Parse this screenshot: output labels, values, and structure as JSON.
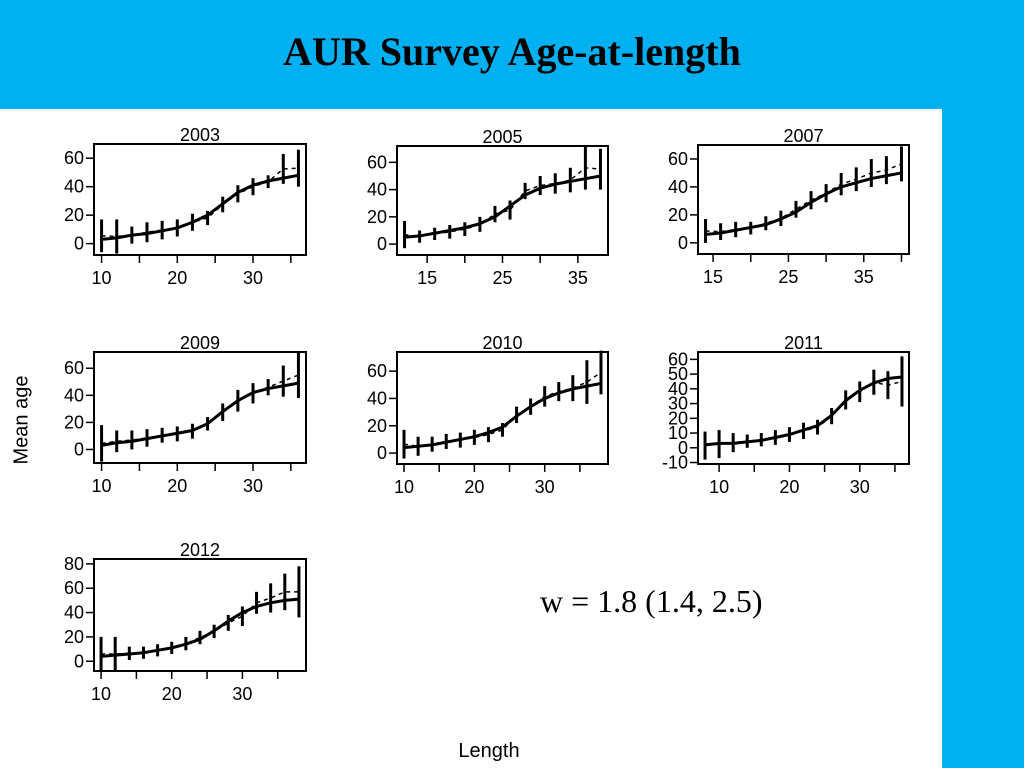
{
  "slide": {
    "title": "AUR Survey Age-at-length",
    "annotation": "w = 1.8 (1.4, 2.5)"
  },
  "colors": {
    "band": "#00b0f0",
    "ink": "#000000"
  },
  "chart_data": {
    "type": "line",
    "xlabel": "Length",
    "ylabel": "Mean age",
    "grid": false,
    "legend": "none",
    "panels": [
      {
        "title": "2003",
        "xlim": [
          9,
          37
        ],
        "ylim": [
          -8,
          70
        ],
        "xticks": [
          10,
          20,
          30
        ],
        "yticks": [
          0,
          20,
          40,
          60
        ],
        "fit": {
          "x": [
            10,
            12,
            14,
            16,
            18,
            20,
            22,
            24,
            26,
            28,
            30,
            32,
            34,
            36
          ],
          "y": [
            3,
            4,
            6,
            7,
            9,
            11,
            15,
            20,
            28,
            36,
            41,
            44,
            46,
            48
          ]
        },
        "observed": [
          {
            "x": 10,
            "low": -6,
            "high": 17
          },
          {
            "x": 12,
            "low": -7,
            "high": 17
          },
          {
            "x": 14,
            "low": 0,
            "high": 12
          },
          {
            "x": 16,
            "low": 1,
            "high": 15
          },
          {
            "x": 18,
            "low": 3,
            "high": 16
          },
          {
            "x": 20,
            "low": 5,
            "high": 17
          },
          {
            "x": 22,
            "low": 9,
            "high": 21
          },
          {
            "x": 24,
            "low": 13,
            "high": 23
          },
          {
            "x": 26,
            "low": 22,
            "high": 33
          },
          {
            "x": 28,
            "low": 29,
            "high": 41
          },
          {
            "x": 30,
            "low": 34,
            "high": 46
          },
          {
            "x": 32,
            "low": 39,
            "high": 48
          },
          {
            "x": 34,
            "low": 42,
            "high": 63
          },
          {
            "x": 36,
            "low": 40,
            "high": 66
          }
        ]
      },
      {
        "title": "2005",
        "xlim": [
          11,
          39
        ],
        "ylim": [
          -8,
          72
        ],
        "xticks": [
          15,
          25,
          35
        ],
        "yticks": [
          0,
          20,
          40,
          60
        ],
        "fit": {
          "x": [
            12,
            14,
            16,
            18,
            20,
            22,
            24,
            26,
            28,
            30,
            32,
            34,
            36,
            38
          ],
          "y": [
            5,
            6,
            8,
            10,
            12,
            15,
            20,
            28,
            36,
            41,
            44,
            46,
            48,
            50
          ]
        },
        "observed": [
          {
            "x": 12,
            "low": -3,
            "high": 17
          },
          {
            "x": 14,
            "low": 1,
            "high": 10
          },
          {
            "x": 16,
            "low": 3,
            "high": 12
          },
          {
            "x": 18,
            "low": 4,
            "high": 14
          },
          {
            "x": 20,
            "low": 6,
            "high": 16
          },
          {
            "x": 22,
            "low": 9,
            "high": 20
          },
          {
            "x": 24,
            "low": 16,
            "high": 28
          },
          {
            "x": 26,
            "low": 18,
            "high": 32
          },
          {
            "x": 28,
            "low": 33,
            "high": 45
          },
          {
            "x": 30,
            "low": 36,
            "high": 50
          },
          {
            "x": 32,
            "low": 37,
            "high": 52
          },
          {
            "x": 34,
            "low": 38,
            "high": 56
          },
          {
            "x": 36,
            "low": 40,
            "high": 72
          },
          {
            "x": 38,
            "low": 40,
            "high": 70
          }
        ]
      },
      {
        "title": "2007",
        "xlim": [
          13,
          41
        ],
        "ylim": [
          -8,
          70
        ],
        "xticks": [
          15,
          25,
          35
        ],
        "yticks": [
          0,
          20,
          40,
          60
        ],
        "fit": {
          "x": [
            14,
            16,
            18,
            20,
            22,
            24,
            26,
            28,
            30,
            32,
            34,
            36,
            38,
            40
          ],
          "y": [
            6,
            7,
            9,
            11,
            13,
            17,
            22,
            29,
            35,
            40,
            43,
            46,
            48,
            50
          ]
        },
        "observed": [
          {
            "x": 14,
            "low": 0,
            "high": 17
          },
          {
            "x": 16,
            "low": 2,
            "high": 14
          },
          {
            "x": 18,
            "low": 4,
            "high": 15
          },
          {
            "x": 20,
            "low": 6,
            "high": 15
          },
          {
            "x": 22,
            "low": 9,
            "high": 19
          },
          {
            "x": 24,
            "low": 12,
            "high": 23
          },
          {
            "x": 26,
            "low": 18,
            "high": 30
          },
          {
            "x": 28,
            "low": 24,
            "high": 37
          },
          {
            "x": 30,
            "low": 29,
            "high": 42
          },
          {
            "x": 32,
            "low": 34,
            "high": 50
          },
          {
            "x": 34,
            "low": 37,
            "high": 54
          },
          {
            "x": 36,
            "low": 40,
            "high": 60
          },
          {
            "x": 38,
            "low": 42,
            "high": 62
          },
          {
            "x": 40,
            "low": 44,
            "high": 69
          }
        ]
      },
      {
        "title": "2009",
        "xlim": [
          9,
          37
        ],
        "ylim": [
          -10,
          72
        ],
        "xticks": [
          10,
          20,
          30
        ],
        "yticks": [
          0,
          20,
          40,
          60
        ],
        "fit": {
          "x": [
            10,
            12,
            14,
            16,
            18,
            20,
            22,
            24,
            26,
            28,
            30,
            32,
            34,
            36
          ],
          "y": [
            3,
            5,
            6,
            8,
            10,
            12,
            14,
            19,
            28,
            36,
            42,
            45,
            47,
            49
          ]
        },
        "observed": [
          {
            "x": 10,
            "low": -9,
            "high": 18
          },
          {
            "x": 12,
            "low": -2,
            "high": 14
          },
          {
            "x": 14,
            "low": 0,
            "high": 14
          },
          {
            "x": 16,
            "low": 2,
            "high": 15
          },
          {
            "x": 18,
            "low": 5,
            "high": 16
          },
          {
            "x": 20,
            "low": 6,
            "high": 17
          },
          {
            "x": 22,
            "low": 8,
            "high": 19
          },
          {
            "x": 24,
            "low": 14,
            "high": 24
          },
          {
            "x": 26,
            "low": 21,
            "high": 34
          },
          {
            "x": 28,
            "low": 28,
            "high": 44
          },
          {
            "x": 30,
            "low": 34,
            "high": 49
          },
          {
            "x": 32,
            "low": 40,
            "high": 52
          },
          {
            "x": 34,
            "low": 39,
            "high": 62
          },
          {
            "x": 36,
            "low": 38,
            "high": 72
          }
        ]
      },
      {
        "title": "2010",
        "xlim": [
          9,
          39
        ],
        "ylim": [
          -8,
          74
        ],
        "xticks": [
          10,
          20,
          30
        ],
        "yticks": [
          0,
          20,
          40,
          60
        ],
        "fit": {
          "x": [
            10,
            12,
            14,
            16,
            18,
            20,
            22,
            24,
            26,
            28,
            30,
            32,
            34,
            36,
            38
          ],
          "y": [
            4,
            5,
            6,
            8,
            10,
            12,
            15,
            19,
            27,
            34,
            40,
            44,
            47,
            49,
            51
          ]
        },
        "observed": [
          {
            "x": 10,
            "low": -4,
            "high": 17
          },
          {
            "x": 12,
            "low": -2,
            "high": 12
          },
          {
            "x": 14,
            "low": 1,
            "high": 12
          },
          {
            "x": 16,
            "low": 3,
            "high": 14
          },
          {
            "x": 18,
            "low": 4,
            "high": 15
          },
          {
            "x": 20,
            "low": 6,
            "high": 17
          },
          {
            "x": 22,
            "low": 8,
            "high": 19
          },
          {
            "x": 24,
            "low": 12,
            "high": 22
          },
          {
            "x": 26,
            "low": 22,
            "high": 34
          },
          {
            "x": 28,
            "low": 28,
            "high": 40
          },
          {
            "x": 30,
            "low": 34,
            "high": 49
          },
          {
            "x": 32,
            "low": 38,
            "high": 52
          },
          {
            "x": 34,
            "low": 38,
            "high": 57
          },
          {
            "x": 36,
            "low": 36,
            "high": 68
          },
          {
            "x": 38,
            "low": 43,
            "high": 75
          }
        ]
      },
      {
        "title": "2011",
        "xlim": [
          7,
          37
        ],
        "ylim": [
          -11,
          65
        ],
        "xticks": [
          10,
          20,
          30
        ],
        "yticks": [
          -10,
          0,
          10,
          20,
          30,
          40,
          50,
          60
        ],
        "fit": {
          "x": [
            8,
            10,
            12,
            14,
            16,
            18,
            20,
            22,
            24,
            26,
            28,
            30,
            32,
            34,
            36
          ],
          "y": [
            2,
            3,
            3,
            4,
            5,
            7,
            9,
            12,
            15,
            22,
            32,
            39,
            44,
            47,
            48
          ]
        },
        "observed": [
          {
            "x": 8,
            "low": -8,
            "high": 11
          },
          {
            "x": 10,
            "low": -7,
            "high": 12
          },
          {
            "x": 12,
            "low": -3,
            "high": 10
          },
          {
            "x": 14,
            "low": 0,
            "high": 9
          },
          {
            "x": 16,
            "low": 1,
            "high": 10
          },
          {
            "x": 18,
            "low": 2,
            "high": 12
          },
          {
            "x": 20,
            "low": 4,
            "high": 14
          },
          {
            "x": 22,
            "low": 6,
            "high": 17
          },
          {
            "x": 24,
            "low": 9,
            "high": 19
          },
          {
            "x": 26,
            "low": 16,
            "high": 27
          },
          {
            "x": 28,
            "low": 26,
            "high": 39
          },
          {
            "x": 30,
            "low": 31,
            "high": 45
          },
          {
            "x": 32,
            "low": 36,
            "high": 53
          },
          {
            "x": 34,
            "low": 33,
            "high": 52
          },
          {
            "x": 36,
            "low": 28,
            "high": 62
          }
        ]
      },
      {
        "title": "2012",
        "xlim": [
          9,
          39
        ],
        "ylim": [
          -8,
          84
        ],
        "xticks": [
          10,
          20,
          30
        ],
        "yticks": [
          0,
          20,
          40,
          60,
          80
        ],
        "fit": {
          "x": [
            10,
            12,
            14,
            16,
            18,
            20,
            22,
            24,
            26,
            28,
            30,
            32,
            34,
            36,
            38
          ],
          "y": [
            4,
            5,
            6,
            7,
            9,
            11,
            14,
            18,
            25,
            33,
            40,
            45,
            48,
            50,
            51
          ]
        },
        "observed": [
          {
            "x": 10,
            "low": -8,
            "high": 20
          },
          {
            "x": 12,
            "low": -8,
            "high": 20
          },
          {
            "x": 14,
            "low": 1,
            "high": 12
          },
          {
            "x": 16,
            "low": 2,
            "high": 12
          },
          {
            "x": 18,
            "low": 4,
            "high": 14
          },
          {
            "x": 20,
            "low": 6,
            "high": 16
          },
          {
            "x": 22,
            "low": 9,
            "high": 20
          },
          {
            "x": 24,
            "low": 14,
            "high": 25
          },
          {
            "x": 26,
            "low": 19,
            "high": 30
          },
          {
            "x": 28,
            "low": 25,
            "high": 38
          },
          {
            "x": 30,
            "low": 29,
            "high": 45
          },
          {
            "x": 32,
            "low": 39,
            "high": 57
          },
          {
            "x": 34,
            "low": 40,
            "high": 64
          },
          {
            "x": 36,
            "low": 42,
            "high": 72
          },
          {
            "x": 38,
            "low": 36,
            "high": 78
          }
        ]
      }
    ]
  }
}
